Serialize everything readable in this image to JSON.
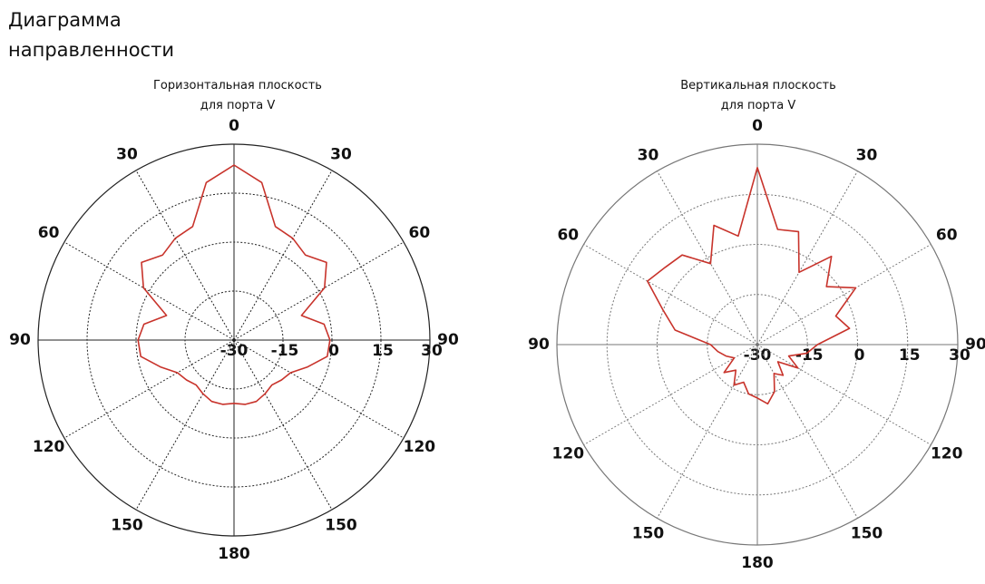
{
  "header": {
    "title": "Диаграмма направленности"
  },
  "chart_data": [
    {
      "type": "polar",
      "title": "Горизонтальная плоскость для порта V",
      "theta": [
        0,
        10,
        20,
        30,
        40,
        50,
        60,
        70,
        80,
        90,
        100,
        110,
        120,
        130,
        140,
        150,
        160,
        170,
        180,
        190,
        200,
        210,
        220,
        230,
        240,
        250,
        260,
        270,
        280,
        290,
        300,
        310,
        320,
        330,
        340,
        350
      ],
      "series": [
        {
          "color": "#c8332b",
          "values": [
            23.6,
            19,
            7,
            6,
            4,
            7,
            2,
            -8,
            -2,
            -0.6,
            -1,
            -6,
            -10,
            -11,
            -12,
            -11,
            -10,
            -10,
            -10.6,
            -10,
            -10,
            -11,
            -12,
            -11,
            -10,
            -6,
            -1,
            -0.6,
            -2,
            -8,
            2,
            7,
            4,
            6,
            7,
            19
          ]
        }
      ],
      "rlim": [
        -30,
        30
      ],
      "rticks": [
        -30,
        -15,
        0,
        15,
        30
      ],
      "thetaticks": [
        0,
        30,
        60,
        90,
        120,
        150,
        180,
        {
          "value": 210,
          "label": "150"
        },
        {
          "value": 240,
          "label": "120"
        },
        {
          "value": 270,
          "label": "90"
        },
        {
          "value": 300,
          "label": "60"
        },
        {
          "value": 330,
          "label": "30"
        }
      ],
      "grid": true
    },
    {
      "type": "polar",
      "title": "Вертикальная плоскость для порта V",
      "theta": [
        0,
        10,
        20,
        30,
        40,
        50,
        60,
        70,
        80,
        90,
        100,
        110,
        120,
        130,
        140,
        150,
        160,
        170,
        180,
        190,
        200,
        210,
        220,
        230,
        240,
        250,
        260,
        270,
        280,
        290,
        300,
        310,
        320,
        330,
        340,
        350
      ],
      "series": [
        {
          "color": "#c8332b",
          "values": [
            23,
            5,
            6,
            -5,
            4.5,
            -3,
            4,
            -5,
            -2,
            -12,
            -15,
            -20,
            -16,
            -22,
            -18,
            -20,
            -15,
            -12,
            -14,
            -15,
            -18,
            -16,
            -20,
            -17,
            -22,
            -20,
            -18,
            -16,
            -5,
            0,
            8,
            6,
            5,
            -2,
            8,
            3
          ]
        }
      ],
      "rlim": [
        -30,
        30
      ],
      "rticks": [
        -30,
        -15,
        0,
        15,
        30
      ],
      "thetaticks": [
        0,
        30,
        60,
        90,
        120,
        150,
        180,
        {
          "value": 210,
          "label": "150"
        },
        {
          "value": 240,
          "label": "120"
        },
        {
          "value": 270,
          "label": "90"
        },
        {
          "value": 300,
          "label": "60"
        },
        {
          "value": 330,
          "label": "30"
        }
      ],
      "grid": true
    }
  ]
}
